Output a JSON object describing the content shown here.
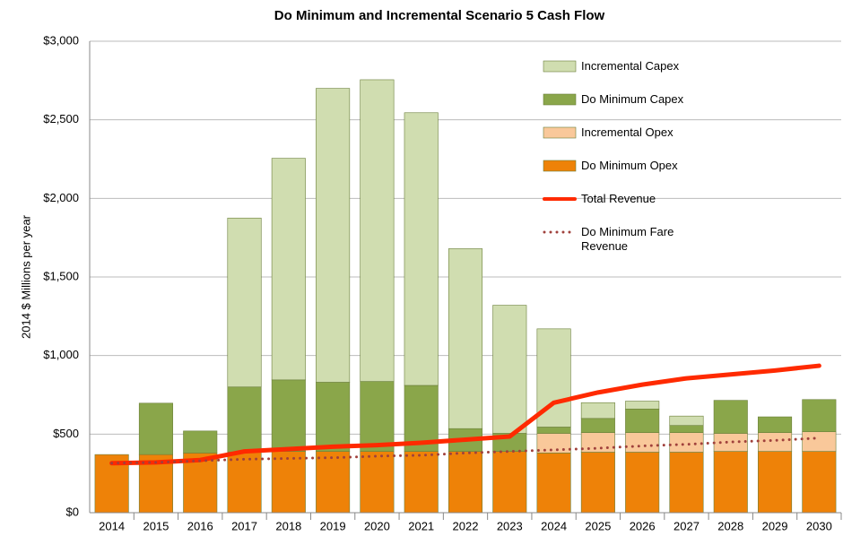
{
  "chart_data": {
    "type": "bar",
    "stacked": true,
    "title": "Do Minimum and  Incremental Scenario 5 Cash Flow",
    "y_label": "2014 $ Millions per year",
    "categories": [
      "2014",
      "2015",
      "2016",
      "2017",
      "2018",
      "2019",
      "2020",
      "2021",
      "2022",
      "2023",
      "2024",
      "2025",
      "2026",
      "2027",
      "2028",
      "2029",
      "2030"
    ],
    "series": [
      {
        "name": "Do Minimum Opex",
        "type": "bar",
        "color": "#ee8208",
        "values": [
          370,
          370,
          380,
          385,
          390,
          390,
          390,
          390,
          390,
          390,
          380,
          385,
          385,
          385,
          390,
          390,
          390
        ]
      },
      {
        "name": "Incremental Opex",
        "type": "bar",
        "color": "#f9c89a",
        "values": [
          0,
          0,
          0,
          0,
          0,
          0,
          0,
          0,
          0,
          0,
          125,
          125,
          125,
          125,
          115,
          120,
          125
        ]
      },
      {
        "name": "Do Minimum Capex",
        "type": "bar",
        "color": "#8aa64a",
        "values": [
          0,
          327,
          140,
          415,
          455,
          440,
          445,
          420,
          145,
          115,
          40,
          90,
          150,
          45,
          210,
          100,
          205
        ]
      },
      {
        "name": "Incremental Capex",
        "type": "bar",
        "color": "#d0ddb0",
        "values": [
          0,
          0,
          0,
          1075,
          1410,
          1870,
          1920,
          1735,
          1145,
          815,
          625,
          100,
          50,
          60,
          0,
          0,
          0
        ]
      },
      {
        "name": "Total Revenue",
        "type": "line",
        "linestyle": "solid",
        "color": "#ff2a00",
        "values": [
          315,
          320,
          335,
          390,
          405,
          420,
          430,
          445,
          465,
          485,
          700,
          765,
          815,
          855,
          880,
          905,
          935
        ]
      },
      {
        "name": "Do Minimum Fare Revenue",
        "type": "line",
        "linestyle": "dotted",
        "color": "#a0413c",
        "values": [
          315,
          320,
          330,
          340,
          345,
          350,
          360,
          365,
          380,
          390,
          400,
          410,
          425,
          435,
          450,
          460,
          475
        ]
      }
    ],
    "ylim": [
      0,
      3000
    ],
    "yticks": [
      {
        "value": 0,
        "label": "$0"
      },
      {
        "value": 500,
        "label": "$500"
      },
      {
        "value": 1000,
        "label": "$1,000"
      },
      {
        "value": 1500,
        "label": "$1,500"
      },
      {
        "value": 2000,
        "label": "$2,000"
      },
      {
        "value": 2500,
        "label": "$2,500"
      },
      {
        "value": 3000,
        "label": "$3,000"
      }
    ],
    "grid": true,
    "legend": "upper right"
  }
}
